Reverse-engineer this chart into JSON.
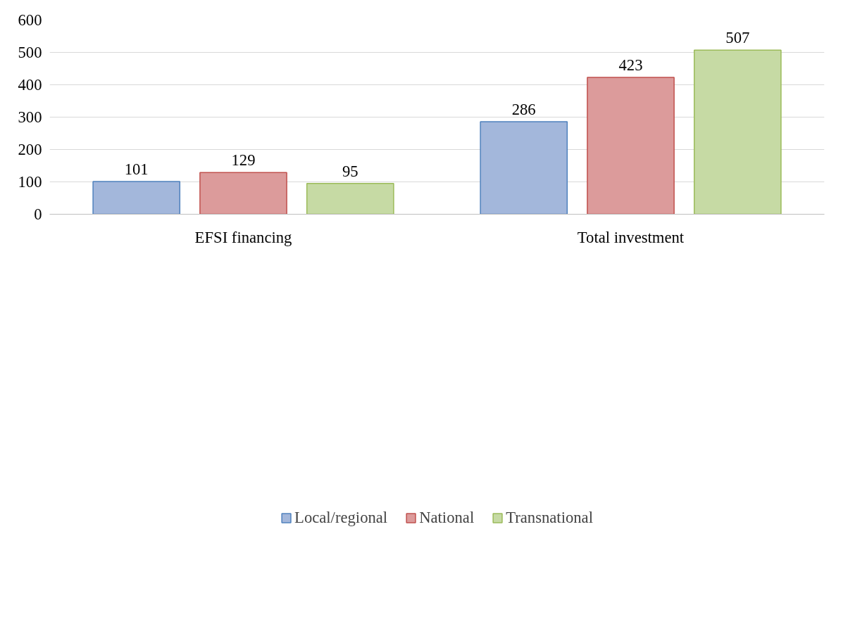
{
  "chart_data": {
    "type": "bar",
    "categories": [
      "EFSI financing",
      "Total investment"
    ],
    "series": [
      {
        "name": "Local/regional",
        "color": "#a3b7db",
        "values": [
          101,
          286
        ]
      },
      {
        "name": "National",
        "color": "#dc9b9b",
        "values": [
          129,
          423
        ]
      },
      {
        "name": "Transnational",
        "color": "#c6daa4",
        "values": [
          95,
          507
        ]
      }
    ],
    "ylim": [
      0,
      600
    ],
    "yticks": [
      0,
      100,
      200,
      300,
      400,
      500,
      600
    ],
    "grid": "y",
    "legend": "bottom",
    "data_labels": true
  }
}
